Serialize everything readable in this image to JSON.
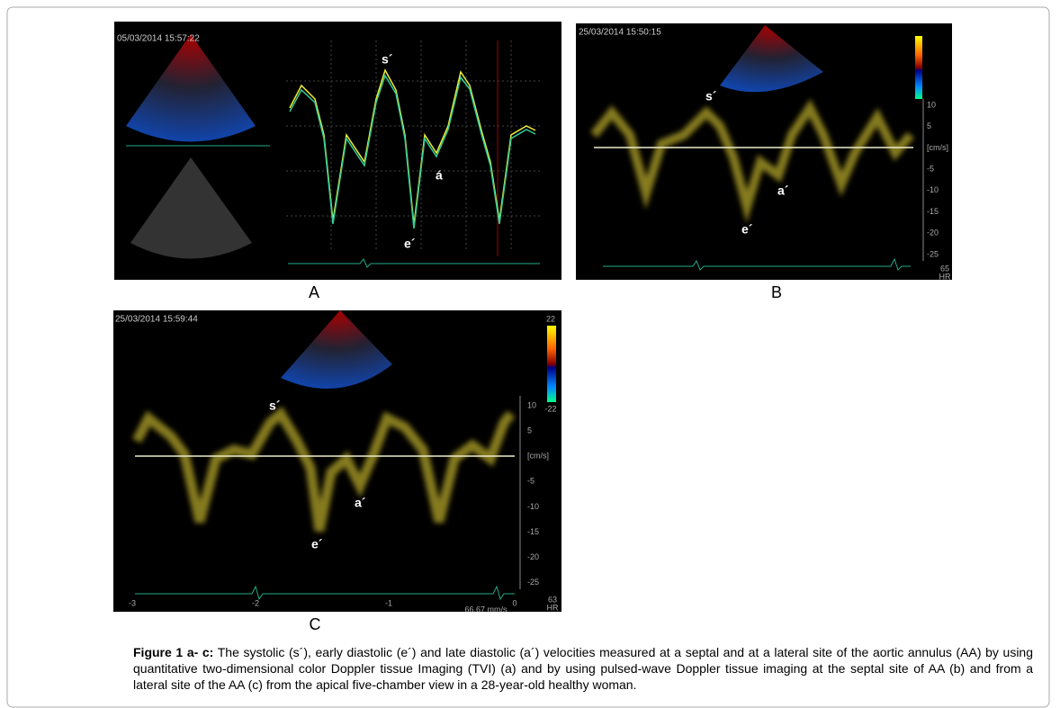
{
  "figure": {
    "panels": [
      {
        "label": "A",
        "timestamp": "05/03/2014 15:57:22",
        "s": "s´",
        "e": "e´",
        "a": "á"
      },
      {
        "label": "B",
        "timestamp": "25/03/2014 15:50:15",
        "s": "s´",
        "e": "e´",
        "a": "a´",
        "scale": [
          "10",
          "5",
          "[cm/s]",
          "-5",
          "-10",
          "-15",
          "-20",
          "-25"
        ],
        "hr": "65",
        "hr_unit": "HR"
      },
      {
        "label": "C",
        "timestamp": "25/03/2014 15:59:44",
        "s": "s´",
        "e": "e´",
        "a": "a´",
        "scale": [
          "10",
          "5",
          "[cm/s]",
          "-5",
          "-10",
          "-15",
          "-20",
          "-25"
        ],
        "color_max": "22",
        "color_min": "-22",
        "hr": "63",
        "hr_unit": "HR",
        "sweep": "66.67 mm/s",
        "time_ticks": [
          "-3",
          "-2",
          "-1",
          "0"
        ]
      }
    ],
    "caption": {
      "lead": "Figure 1 a- c:",
      "text": " The systolic (s´), early diastolic (e´) and late diastolic (a´) velocities measured at a septal and at a lateral site of the aortic annulus (AA) by using quantitative two-dimensional color Doppler tissue Imaging (TVI) (a) and by using pulsed-wave Doppler tissue imaging at the septal site of AA (b) and from a lateral site of the AA (c) from the apical five-chamber view in a 28-year-old healthy woman."
    }
  }
}
